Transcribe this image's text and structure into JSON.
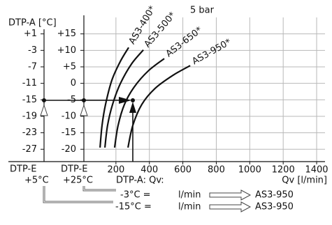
{
  "chart_data": {
    "type": "line",
    "title": "5 bar",
    "y_label": "DTP-A [°C]",
    "x_label": "Qv [l/min]",
    "xlim": [
      0,
      1450
    ],
    "xticks": [
      200,
      400,
      600,
      800,
      1000,
      1200,
      1400
    ],
    "ylim": [
      -30,
      5
    ],
    "yticks": [
      {
        "value": 1,
        "label": "+1"
      },
      -3,
      -7,
      -11,
      -15,
      -19,
      -23,
      -27
    ],
    "y2lim": [
      -23.75,
      20
    ],
    "y2ticks": [
      {
        "value": 15,
        "label": "+15"
      },
      {
        "value": 10,
        "label": "+10"
      },
      {
        "value": 5,
        "label": "+5"
      },
      0,
      -5,
      -10,
      -15,
      -20
    ],
    "grid": true,
    "series": [
      {
        "name": "AS3-400*",
        "color": "#111111",
        "x": [
          105,
          117,
          138,
          176,
          226,
          276
        ],
        "values": [
          -26.6,
          -21.2,
          -16.1,
          -10.2,
          -5.7,
          -2.3
        ]
      },
      {
        "name": "AS3-500*",
        "color": "#111111",
        "x": [
          134,
          150,
          180,
          226,
          293,
          364
        ],
        "values": [
          -26.6,
          -21.2,
          -16.1,
          -11.1,
          -6.3,
          -2.9
        ]
      },
      {
        "name": "AS3-650*",
        "color": "#111111",
        "x": [
          192,
          213,
          251,
          309,
          393,
          489
        ],
        "values": [
          -26.6,
          -21.2,
          -16.1,
          -11.9,
          -8.0,
          -5.0
        ]
      },
      {
        "name": "AS3-950*",
        "color": "#111111",
        "x": [
          272,
          301,
          355,
          435,
          543,
          644
        ],
        "values": [
          -26.6,
          -21.2,
          -16.1,
          -12.2,
          -9.0,
          -6.7
        ]
      }
    ],
    "annotations": [
      "DTP-E",
      "+5°C",
      "DTP-E",
      "+25°C",
      "DTP-A: Qv:",
      "-3°C =",
      "l/min",
      "AS3-950",
      "-15°C =",
      "l/min",
      "AS3-950"
    ]
  }
}
